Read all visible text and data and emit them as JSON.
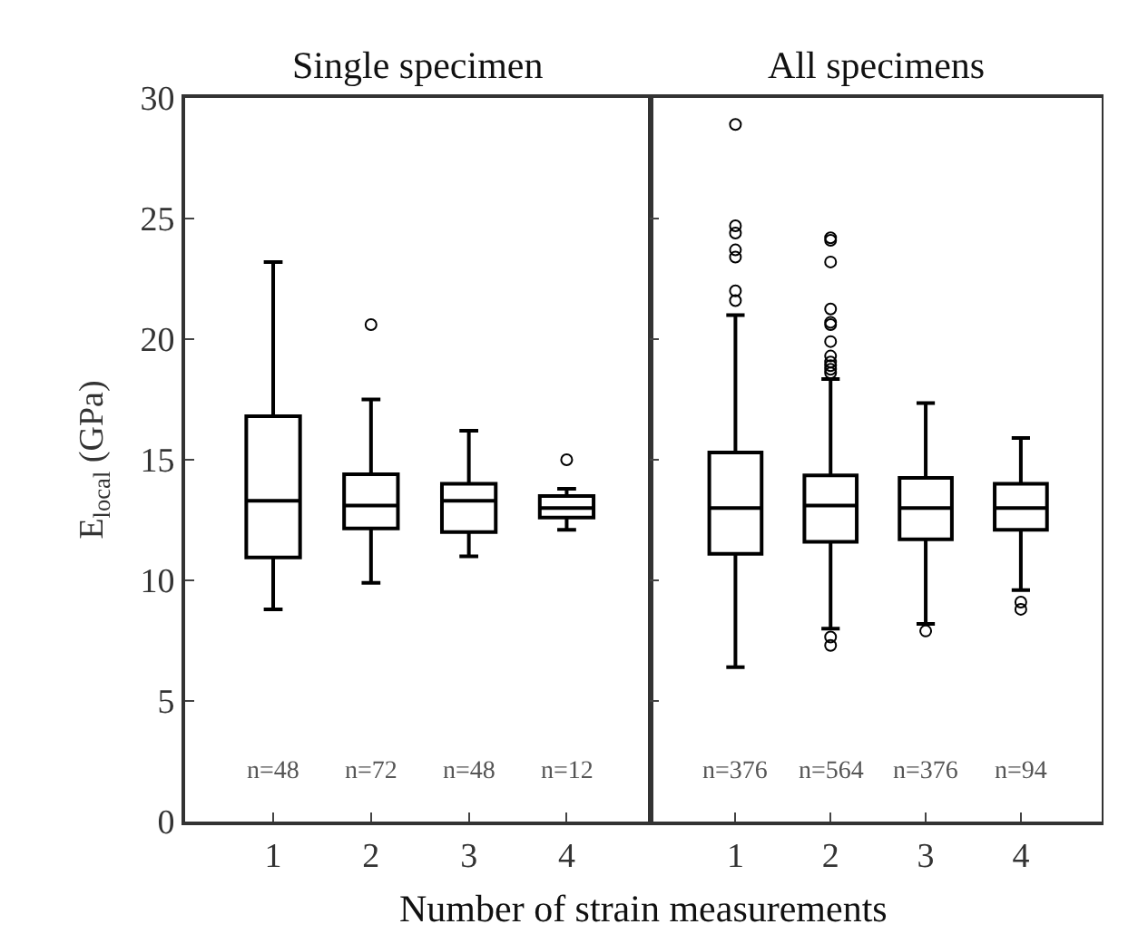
{
  "chart_data": [
    {
      "type": "box",
      "title": "Single specimen",
      "xlabel": "Number of strain measurements",
      "ylabel": "E$_{local}$ (GPa)",
      "categories": [
        "1",
        "2",
        "3",
        "4"
      ],
      "ylim": [
        0,
        30
      ],
      "yticks": [
        0,
        5,
        10,
        15,
        20,
        25,
        30
      ],
      "boxes": [
        {
          "low": 8.8,
          "q1": 10.95,
          "median": 13.3,
          "q3": 16.8,
          "high": 23.2
        },
        {
          "low": 9.9,
          "q1": 12.15,
          "median": 13.1,
          "q3": 14.4,
          "high": 17.5,
          "outliers": [
            20.6
          ]
        },
        {
          "low": 11.0,
          "q1": 12.0,
          "median": 13.3,
          "q3": 14.0,
          "high": 16.2
        },
        {
          "low": 12.1,
          "q1": 12.6,
          "median": 13.0,
          "q3": 13.5,
          "high": 13.8,
          "outliers": [
            15.0
          ]
        }
      ],
      "annotations": [
        "n=48",
        "n=72",
        "n=48",
        "n=12"
      ]
    },
    {
      "type": "box",
      "title": "All specimens",
      "categories": [
        "1",
        "2",
        "3",
        "4"
      ],
      "ylim": [
        0,
        30
      ],
      "yticks": [
        0,
        5,
        10,
        15,
        20,
        25,
        30
      ],
      "tick_labels": "x",
      "boxes": [
        {
          "low": 6.4,
          "q1": 11.1,
          "median": 13.0,
          "q3": 15.3,
          "high": 21.0,
          "outliers": [
            28.9,
            24.7,
            24.4,
            23.7,
            23.4,
            22.0,
            21.6
          ]
        },
        {
          "low": 8.0,
          "q1": 11.6,
          "median": 13.1,
          "q3": 14.35,
          "high": 18.35,
          "outliers": [
            24.2,
            24.1,
            23.2,
            21.25,
            20.7,
            20.6,
            19.9,
            19.3,
            19.05,
            18.9,
            18.75,
            18.6,
            7.65,
            7.3
          ]
        },
        {
          "low": 8.2,
          "q1": 11.7,
          "median": 13.0,
          "q3": 14.25,
          "high": 17.35,
          "outliers": [
            7.9
          ]
        },
        {
          "low": 9.6,
          "q1": 12.1,
          "median": 13.0,
          "q3": 14.0,
          "high": 15.9,
          "outliers": [
            9.1,
            8.8
          ]
        }
      ],
      "annotations": [
        "n=376",
        "n=564",
        "n=376",
        "n=94"
      ]
    }
  ]
}
